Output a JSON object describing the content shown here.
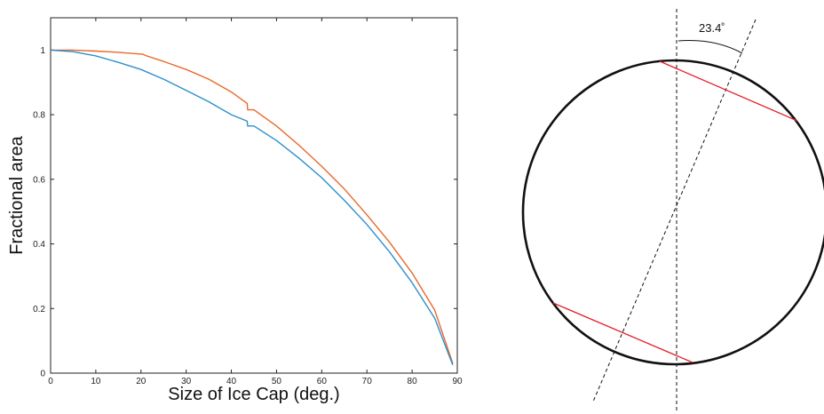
{
  "chart_data": {
    "type": "line",
    "xlabel": "Size of Ice Cap (deg.)",
    "ylabel": "Fractional area",
    "xlim": [
      0,
      90
    ],
    "ylim": [
      0,
      1.1
    ],
    "x_ticks": [
      0,
      10,
      20,
      30,
      40,
      50,
      60,
      70,
      80,
      90
    ],
    "y_ticks": [
      0,
      0.2,
      0.4,
      0.6,
      0.8,
      1
    ],
    "y_tick_labels": [
      "0",
      "0.2",
      "0.4",
      "0.6",
      "0.8",
      "1"
    ],
    "grid": false,
    "series": [
      {
        "color": "#e8692a",
        "points": [
          [
            0,
            1.0
          ],
          [
            5,
            1.0
          ],
          [
            10,
            0.997
          ],
          [
            15,
            0.993
          ],
          [
            20.5,
            0.987
          ],
          [
            21,
            0.983
          ],
          [
            25,
            0.965
          ],
          [
            30,
            0.94
          ],
          [
            35,
            0.91
          ],
          [
            40,
            0.87
          ],
          [
            43.5,
            0.835
          ],
          [
            43.6,
            0.815
          ],
          [
            45,
            0.815
          ],
          [
            50,
            0.765
          ],
          [
            55,
            0.705
          ],
          [
            60,
            0.64
          ],
          [
            65,
            0.57
          ],
          [
            70,
            0.49
          ],
          [
            75,
            0.405
          ],
          [
            80,
            0.31
          ],
          [
            85,
            0.195
          ],
          [
            89,
            0.03
          ]
        ]
      },
      {
        "color": "#2e8fcc",
        "points": [
          [
            0,
            1.0
          ],
          [
            5,
            0.995
          ],
          [
            10,
            0.982
          ],
          [
            15,
            0.962
          ],
          [
            20,
            0.94
          ],
          [
            25,
            0.91
          ],
          [
            30,
            0.875
          ],
          [
            35,
            0.84
          ],
          [
            40,
            0.8
          ],
          [
            43.5,
            0.78
          ],
          [
            43.6,
            0.765
          ],
          [
            45,
            0.765
          ],
          [
            50,
            0.72
          ],
          [
            55,
            0.665
          ],
          [
            60,
            0.605
          ],
          [
            65,
            0.535
          ],
          [
            70,
            0.46
          ],
          [
            75,
            0.375
          ],
          [
            80,
            0.28
          ],
          [
            85,
            0.17
          ],
          [
            89,
            0.025
          ]
        ]
      }
    ]
  },
  "diagram": {
    "tilt_angle_label": "23.4˚",
    "tilt_deg": 23.4,
    "colors": {
      "outline": "#111111",
      "chords": "#e0202a",
      "axes": "#111111"
    }
  }
}
